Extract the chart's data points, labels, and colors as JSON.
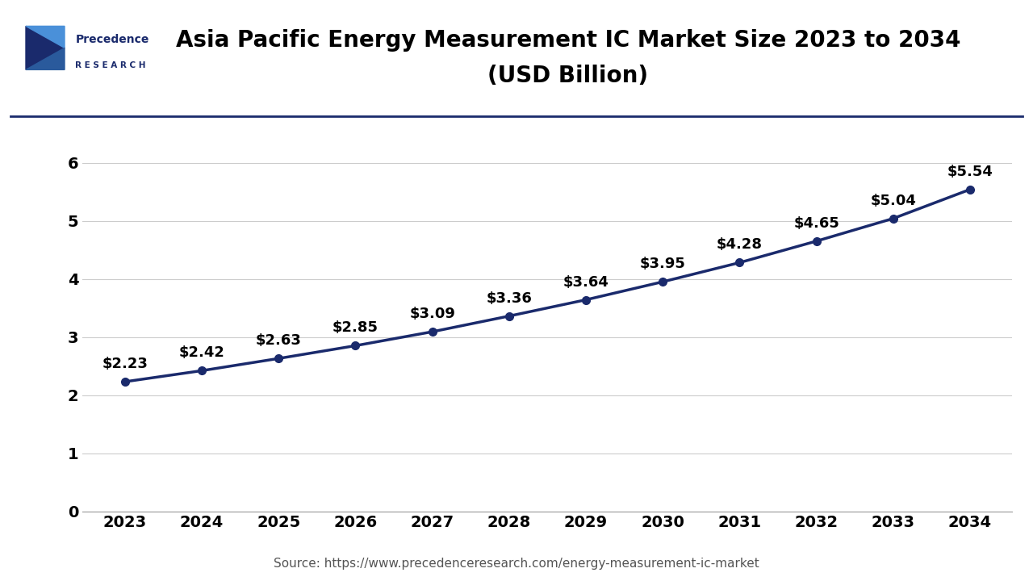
{
  "title_line1": "Asia Pacific Energy Measurement IC Market Size 2023 to 2034",
  "title_line2": "(USD Billion)",
  "source_text": "Source: https://www.precedenceresearch.com/energy-measurement-ic-market",
  "years": [
    2023,
    2024,
    2025,
    2026,
    2027,
    2028,
    2029,
    2030,
    2031,
    2032,
    2033,
    2034
  ],
  "values": [
    2.23,
    2.42,
    2.63,
    2.85,
    3.09,
    3.36,
    3.64,
    3.95,
    4.28,
    4.65,
    5.04,
    5.54
  ],
  "labels": [
    "$2.23",
    "$2.42",
    "$2.63",
    "$2.85",
    "$3.09",
    "$3.36",
    "$3.64",
    "$3.95",
    "$4.28",
    "$4.65",
    "$5.04",
    "$5.54"
  ],
  "line_color": "#1a2a6c",
  "marker_color": "#1a2a6c",
  "background_color": "#ffffff",
  "plot_bg_color": "#ffffff",
  "grid_color": "#cccccc",
  "title_color": "#000000",
  "label_color": "#000000",
  "tick_color": "#000000",
  "ylim": [
    0,
    6.5
  ],
  "yticks": [
    0,
    1,
    2,
    3,
    4,
    5,
    6
  ],
  "title_fontsize": 20,
  "label_fontsize": 13,
  "tick_fontsize": 14,
  "source_fontsize": 11,
  "line_width": 2.5,
  "marker_size": 7,
  "logo_color_dark": "#1a2a6c",
  "logo_color_light": "#4a90d9",
  "separator_color": "#1a2a6c"
}
